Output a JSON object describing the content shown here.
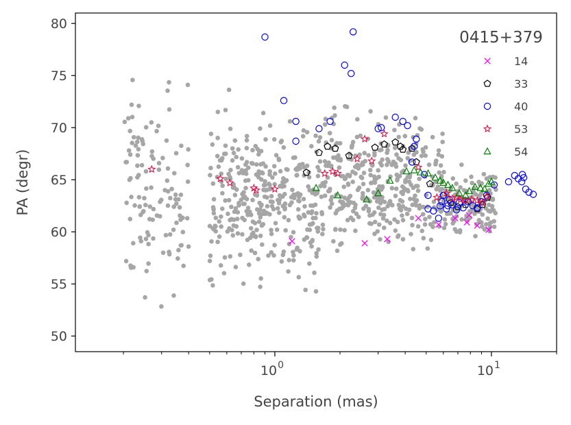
{
  "chart_data": {
    "type": "scatter",
    "title": "",
    "xlabel": "Separation (mas)",
    "ylabel": "PA (degr)",
    "xscale": "log",
    "xlim": [
      0.12,
      20
    ],
    "ylim": [
      48.5,
      81
    ],
    "x_ticks": [
      {
        "value": 1,
        "base": "10",
        "exp": "0"
      },
      {
        "value": 10,
        "base": "10",
        "exp": "1"
      }
    ],
    "y_ticks": [
      50,
      55,
      60,
      65,
      70,
      75,
      80
    ],
    "grid": false,
    "legend": {
      "title": "0415+379",
      "position": "top-right"
    },
    "series": [
      {
        "name": "14",
        "marker": "x",
        "color": "#ff00ff",
        "points": [
          [
            1.2,
            59.1
          ],
          [
            2.6,
            58.9
          ],
          [
            3.3,
            59.3
          ],
          [
            4.6,
            61.3
          ],
          [
            5.7,
            60.7
          ],
          [
            6.8,
            61.3
          ],
          [
            7.7,
            60.9
          ],
          [
            7.9,
            61.6
          ],
          [
            8.6,
            60.6
          ],
          [
            9.7,
            60.2
          ]
        ]
      },
      {
        "name": "33",
        "marker": "pentagon",
        "color": "#000000",
        "points": [
          [
            1.4,
            65.7
          ],
          [
            1.6,
            67.6
          ],
          [
            1.75,
            68.2
          ],
          [
            1.9,
            68
          ],
          [
            2.2,
            67.3
          ],
          [
            2.9,
            68.1
          ],
          [
            3.2,
            68.4
          ],
          [
            3.6,
            68.6
          ],
          [
            3.8,
            68.2
          ],
          [
            3.9,
            67.9
          ],
          [
            4.3,
            68
          ],
          [
            4.5,
            66.7
          ],
          [
            5.2,
            64.6
          ],
          [
            6,
            63.5
          ],
          [
            6.5,
            62.8
          ],
          [
            7,
            62.4
          ],
          [
            7.6,
            62.6
          ],
          [
            8.6,
            62.2
          ],
          [
            9.1,
            62.6
          ],
          [
            9.6,
            63.3
          ]
        ]
      },
      {
        "name": "40",
        "marker": "circle",
        "color": "#0000ff",
        "points": [
          [
            0.9,
            78.7
          ],
          [
            1.1,
            72.6
          ],
          [
            1.25,
            70.6
          ],
          [
            1.25,
            68.7
          ],
          [
            1.6,
            69.9
          ],
          [
            1.8,
            70.6
          ],
          [
            2.1,
            76
          ],
          [
            2.25,
            75.2
          ],
          [
            2.3,
            79.2
          ],
          [
            3.0,
            69.9
          ],
          [
            3.1,
            70
          ],
          [
            3.6,
            71
          ],
          [
            3.9,
            70.6
          ],
          [
            4.1,
            70.2
          ],
          [
            4.3,
            66.7
          ],
          [
            4.4,
            68.2
          ],
          [
            4.5,
            68.9
          ],
          [
            4.9,
            65.5
          ],
          [
            5.1,
            63.5
          ],
          [
            5.1,
            62.2
          ],
          [
            5.4,
            62
          ],
          [
            5.7,
            61.3
          ],
          [
            5.8,
            62.5
          ],
          [
            5.9,
            62.9
          ],
          [
            6.0,
            63.5
          ],
          [
            6.2,
            62.2
          ],
          [
            6.3,
            62.5
          ],
          [
            6.4,
            63.1
          ],
          [
            6.6,
            62.6
          ],
          [
            6.9,
            62.1
          ],
          [
            7.1,
            62.8
          ],
          [
            7.4,
            62.3
          ],
          [
            7.8,
            62.9
          ],
          [
            8.2,
            62.5
          ],
          [
            8.6,
            62.3
          ],
          [
            9.0,
            62.9
          ],
          [
            9.5,
            63.5
          ],
          [
            10.3,
            64.5
          ],
          [
            12.0,
            64.8
          ],
          [
            12.8,
            65.4
          ],
          [
            13.3,
            65.1
          ],
          [
            13.8,
            64.8
          ],
          [
            14.1,
            65.2
          ],
          [
            14.4,
            64.1
          ],
          [
            14.9,
            63.8
          ],
          [
            15.6,
            63.6
          ],
          [
            13.9,
            65.5
          ]
        ]
      },
      {
        "name": "53",
        "marker": "star",
        "color": "#dd1144",
        "points": [
          [
            0.27,
            66
          ],
          [
            0.56,
            65.1
          ],
          [
            0.62,
            64.7
          ],
          [
            0.8,
            64.2
          ],
          [
            0.82,
            64
          ],
          [
            1.0,
            64.1
          ],
          [
            1.7,
            65.6
          ],
          [
            1.85,
            65.8
          ],
          [
            1.95,
            65.6
          ],
          [
            2.4,
            67
          ],
          [
            2.6,
            68.9
          ],
          [
            2.8,
            66.8
          ],
          [
            3.2,
            69.4
          ],
          [
            4.6,
            66.2
          ],
          [
            5.6,
            63.3
          ],
          [
            6.2,
            63.7
          ],
          [
            6.6,
            63.2
          ],
          [
            6.9,
            63.3
          ],
          [
            7.2,
            63.1
          ],
          [
            7.6,
            63
          ],
          [
            8.1,
            63.1
          ],
          [
            8.6,
            63
          ],
          [
            9.1,
            62.8
          ],
          [
            9.5,
            63.4
          ]
        ]
      },
      {
        "name": "54",
        "marker": "triangle",
        "color": "#008000",
        "points": [
          [
            1.55,
            64.2
          ],
          [
            1.95,
            63.5
          ],
          [
            2.65,
            63.1
          ],
          [
            3.0,
            63.7
          ],
          [
            3.4,
            64.9
          ],
          [
            4.05,
            65.8
          ],
          [
            4.4,
            65.9
          ],
          [
            4.7,
            65.7
          ],
          [
            5.1,
            65.6
          ],
          [
            5.5,
            65.2
          ],
          [
            5.8,
            64.9
          ],
          [
            6.0,
            64.7
          ],
          [
            6.3,
            64.5
          ],
          [
            6.6,
            64.2
          ],
          [
            7.1,
            63.7
          ],
          [
            7.6,
            63.5
          ],
          [
            7.9,
            63.9
          ],
          [
            8.4,
            64.3
          ],
          [
            8.9,
            64.2
          ],
          [
            9.3,
            64.1
          ],
          [
            9.7,
            64.6
          ],
          [
            10.0,
            64.8
          ]
        ]
      }
    ]
  }
}
